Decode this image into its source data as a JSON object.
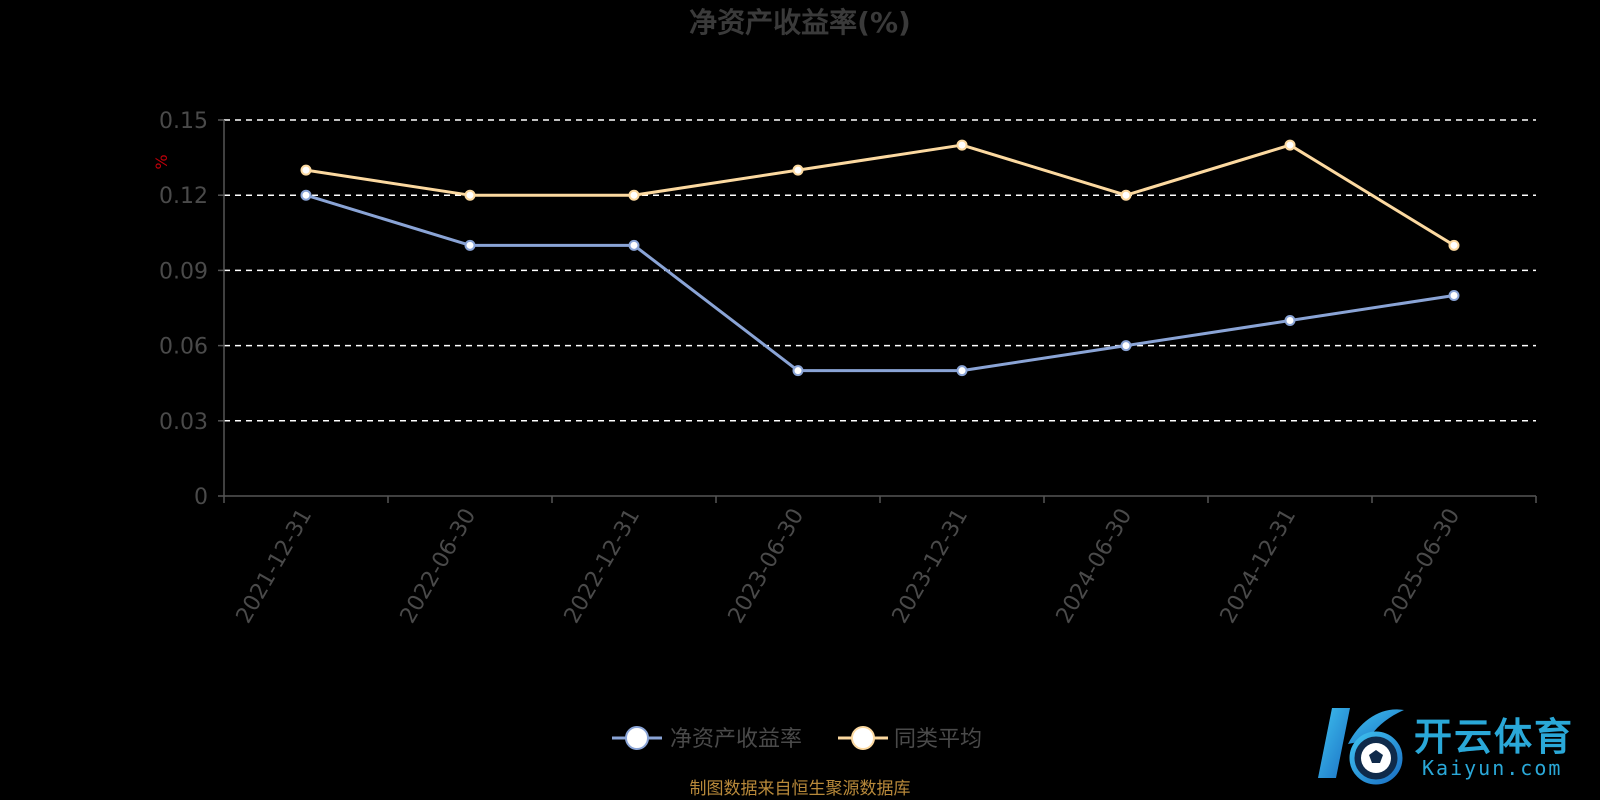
{
  "chart_data": {
    "type": "line",
    "title": "净资产收益率(%)",
    "unit_label": "%",
    "categories": [
      "2021-12-31",
      "2022-06-30",
      "2022-12-31",
      "2023-06-30",
      "2023-12-31",
      "2024-06-30",
      "2024-12-31",
      "2025-06-30"
    ],
    "yticks": [
      "0",
      "0.03",
      "0.06",
      "0.09",
      "0.12",
      "0.15"
    ],
    "ylim": [
      0,
      0.15
    ],
    "grid": true,
    "legend_position": "bottom-center",
    "series": [
      {
        "name": "净资产收益率",
        "color": "#8aa4d6",
        "values": [
          0.12,
          0.1,
          0.1,
          0.05,
          0.05,
          0.06,
          0.07,
          0.08
        ]
      },
      {
        "name": "同类平均",
        "color": "#fcd9a0",
        "values": [
          0.13,
          0.12,
          0.12,
          0.13,
          0.14,
          0.12,
          0.14,
          0.1
        ]
      }
    ]
  },
  "source_note": "制图数据来自恒生聚源数据库",
  "watermark": {
    "brand_cn": "开云体育",
    "brand_en": "Kaiyun.com",
    "color": "#2aa8d8"
  }
}
